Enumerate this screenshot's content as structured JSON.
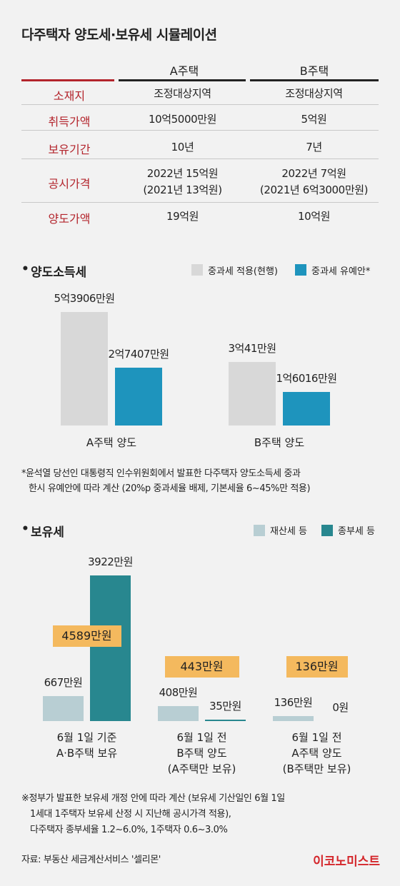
{
  "title": "다주택자 양도세·보유세 시뮬레이션",
  "table": {
    "columns": [
      "A주택",
      "B주택"
    ],
    "rows": [
      {
        "label": "소재지",
        "a": "조정대상지역",
        "b": "조정대상지역"
      },
      {
        "label": "취득가액",
        "a": "10억5000만원",
        "b": "5억원"
      },
      {
        "label": "보유기간",
        "a": "10년",
        "b": "7년"
      },
      {
        "label": "공시가격",
        "a": "2022년 15억원",
        "a2": "(2021년 13억원)",
        "b": "2022년 7억원",
        "b2": "(2021년 6억3000만원)"
      },
      {
        "label": "양도가액",
        "a": "19억원",
        "b": "10억원"
      }
    ]
  },
  "colors": {
    "accent_red": "#b3242c",
    "gray_bar": "#d8d8d8",
    "blue_bar": "#1e94bd",
    "light_bar": "#b8ced3",
    "teal_bar": "#28878f",
    "total_box": "#f4b95e"
  },
  "chart_data": [
    {
      "type": "bar",
      "title": "양도소득세",
      "categories": [
        "A주택 양도",
        "B주택 양도"
      ],
      "series": [
        {
          "name": "중과세 적용(현행)",
          "values": [
            53906,
            30041
          ],
          "labels": [
            "5억3906만원",
            "3억41만원"
          ]
        },
        {
          "name": "중과세 유예안*",
          "values": [
            27407,
            16016
          ],
          "labels": [
            "2억7407만원",
            "1억6016만원"
          ]
        }
      ],
      "unit": "만원",
      "legend": "top-right",
      "note": [
        "*윤석열 당선인 대통령직 인수위원회에서 발표한 다주택자 양도소득세 중과",
        "한시 유예안에 따라 계산 (20%p 중과세율 배제, 기본세율 6~45%만 적용)"
      ]
    },
    {
      "type": "bar",
      "title": "보유세",
      "categories": [
        [
          "6월 1일 기준",
          "A·B주택 보유"
        ],
        [
          "6월 1일 전",
          "B주택 양도",
          "(A주택만 보유)"
        ],
        [
          "6월 1일 전",
          "A주택 양도",
          "(B주택만 보유)"
        ]
      ],
      "series": [
        {
          "name": "재산세 등",
          "values": [
            667,
            408,
            136
          ],
          "labels": [
            "667만원",
            "408만원",
            "136만원"
          ]
        },
        {
          "name": "종부세 등",
          "values": [
            3922,
            35,
            0
          ],
          "labels": [
            "3922만원",
            "35만원",
            "0원"
          ]
        }
      ],
      "totals": [
        "4589만원",
        "443만원",
        "136만원"
      ],
      "unit": "만원",
      "legend": "top-right",
      "note": [
        "※정부가 발표한 보유세 개정 안에 따라 계산 (보유세 기산일인 6월 1일",
        "1세대 1주택자 보유세 산정 시 지난해 공시가격 적용),",
        "다주택자 종부세율 1.2~6.0%, 1주택자 0.6~3.0%"
      ]
    }
  ],
  "source": "자료: 부동산 세금계산서비스 '셀리몬'",
  "logo": "이코노미스트"
}
